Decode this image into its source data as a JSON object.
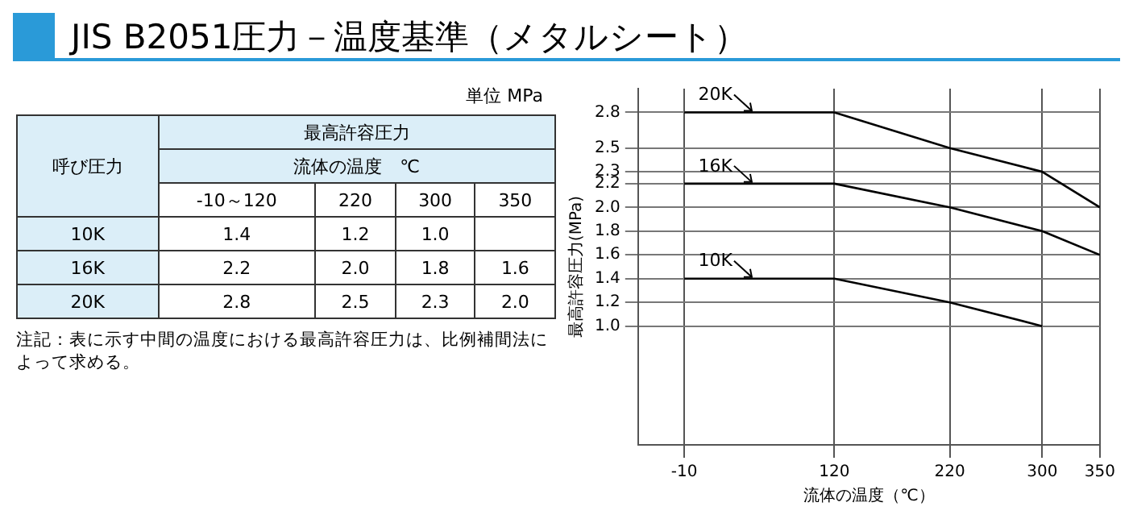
{
  "chart_data": [
    {
      "type": "other",
      "title": "JIS B2051圧力－温度基準（メタルシート）",
      "subtitle": "最高許容圧力",
      "xlabel": "流体の温度　℃",
      "ylabel": "呼び圧力",
      "categories": [
        "-10～120",
        "220",
        "300",
        "350"
      ],
      "series": [
        {
          "name": "10K",
          "values": [
            1.4,
            1.2,
            1.0,
            null
          ],
          "value_labels": [
            "1.4",
            "1.2",
            "1.0",
            null
          ]
        },
        {
          "name": "16K",
          "values": [
            2.2,
            2.0,
            1.8,
            1.6
          ],
          "value_labels": [
            "2.2",
            "2.0",
            "1.8",
            "1.6"
          ]
        },
        {
          "name": "20K",
          "values": [
            2.8,
            2.5,
            2.3,
            2.0
          ],
          "value_labels": [
            "2.8",
            "2.5",
            "2.3",
            "2.0"
          ]
        }
      ],
      "annotations": [
        "単位 MPa",
        "注記：表に示す中間の温度における最高許容圧力は、比例補間法によって求める。"
      ]
    },
    {
      "type": "line",
      "xlabel": "流体の温度（℃）",
      "ylabel": "最高許容圧力(MPa)",
      "x": [
        -10,
        120,
        220,
        300,
        350
      ],
      "series": [
        {
          "name": "20K",
          "color": "#000000",
          "values": [
            2.8,
            2.8,
            2.5,
            2.3,
            2.0
          ]
        },
        {
          "name": "16K",
          "color": "#000000",
          "values": [
            2.2,
            2.2,
            2.0,
            1.8,
            1.6
          ]
        },
        {
          "name": "10K",
          "color": "#000000",
          "values": [
            1.4,
            1.4,
            1.2,
            1.0,
            null
          ]
        }
      ],
      "xlim": [
        -50,
        350
      ],
      "xticks": [
        -10,
        120,
        220,
        300,
        350
      ],
      "ylim": [
        0,
        3
      ],
      "yticks": [
        {
          "value": 1,
          "label": "1.0"
        },
        1.2,
        1.4,
        1.6,
        1.8,
        {
          "value": 2,
          "label": "2.0"
        },
        2.2,
        2.3,
        2.5,
        2.8
      ],
      "grid": true,
      "legend": "top left"
    }
  ]
}
